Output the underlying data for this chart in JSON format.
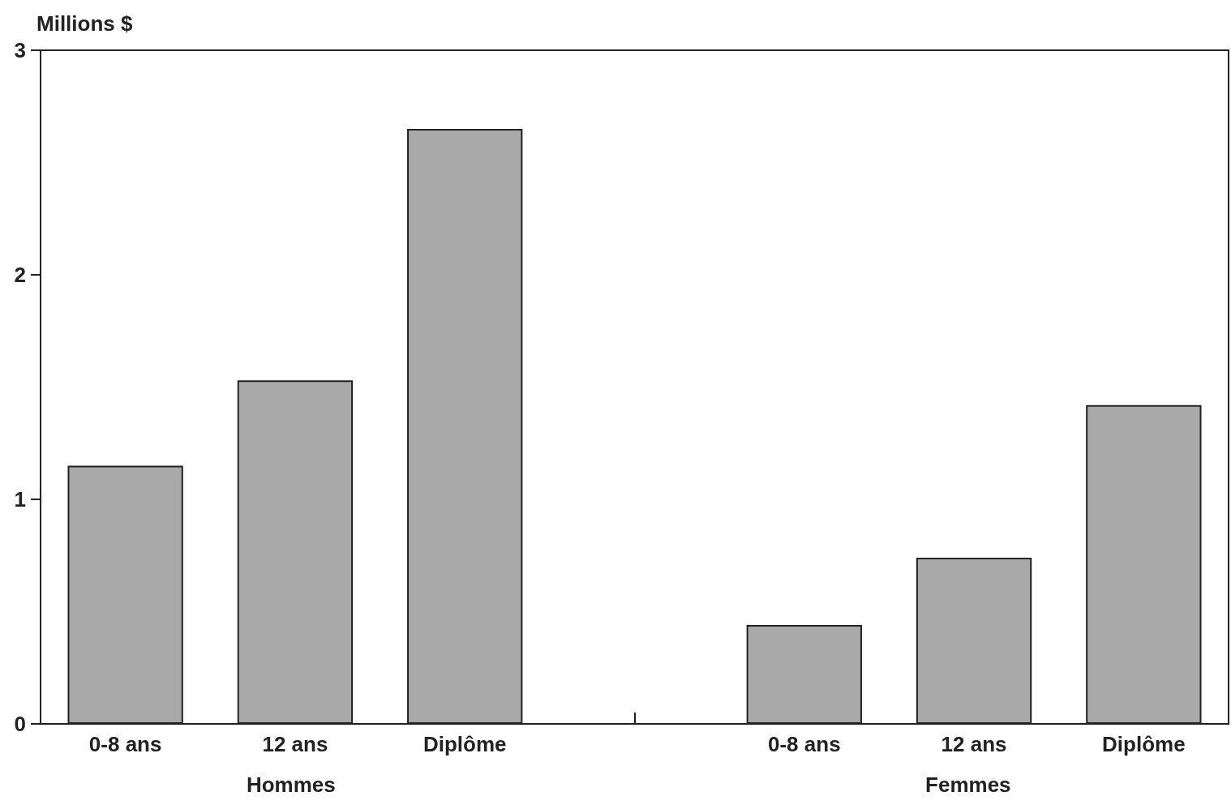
{
  "chart_data": {
    "type": "bar",
    "ylabel": "Millions $",
    "categories": [
      "0-8 ans",
      "12 ans",
      "Diplôme",
      null,
      "0-8 ans",
      "12 ans",
      "Diplôme"
    ],
    "values": [
      1.15,
      1.53,
      2.65,
      null,
      0.44,
      0.74,
      1.42
    ],
    "color": "#a9a9a9",
    "ylim": [
      0,
      3
    ],
    "yticks": [
      0,
      1,
      2,
      3
    ],
    "grid": false,
    "annotations": [
      "Hommes",
      "Femmes"
    ]
  }
}
